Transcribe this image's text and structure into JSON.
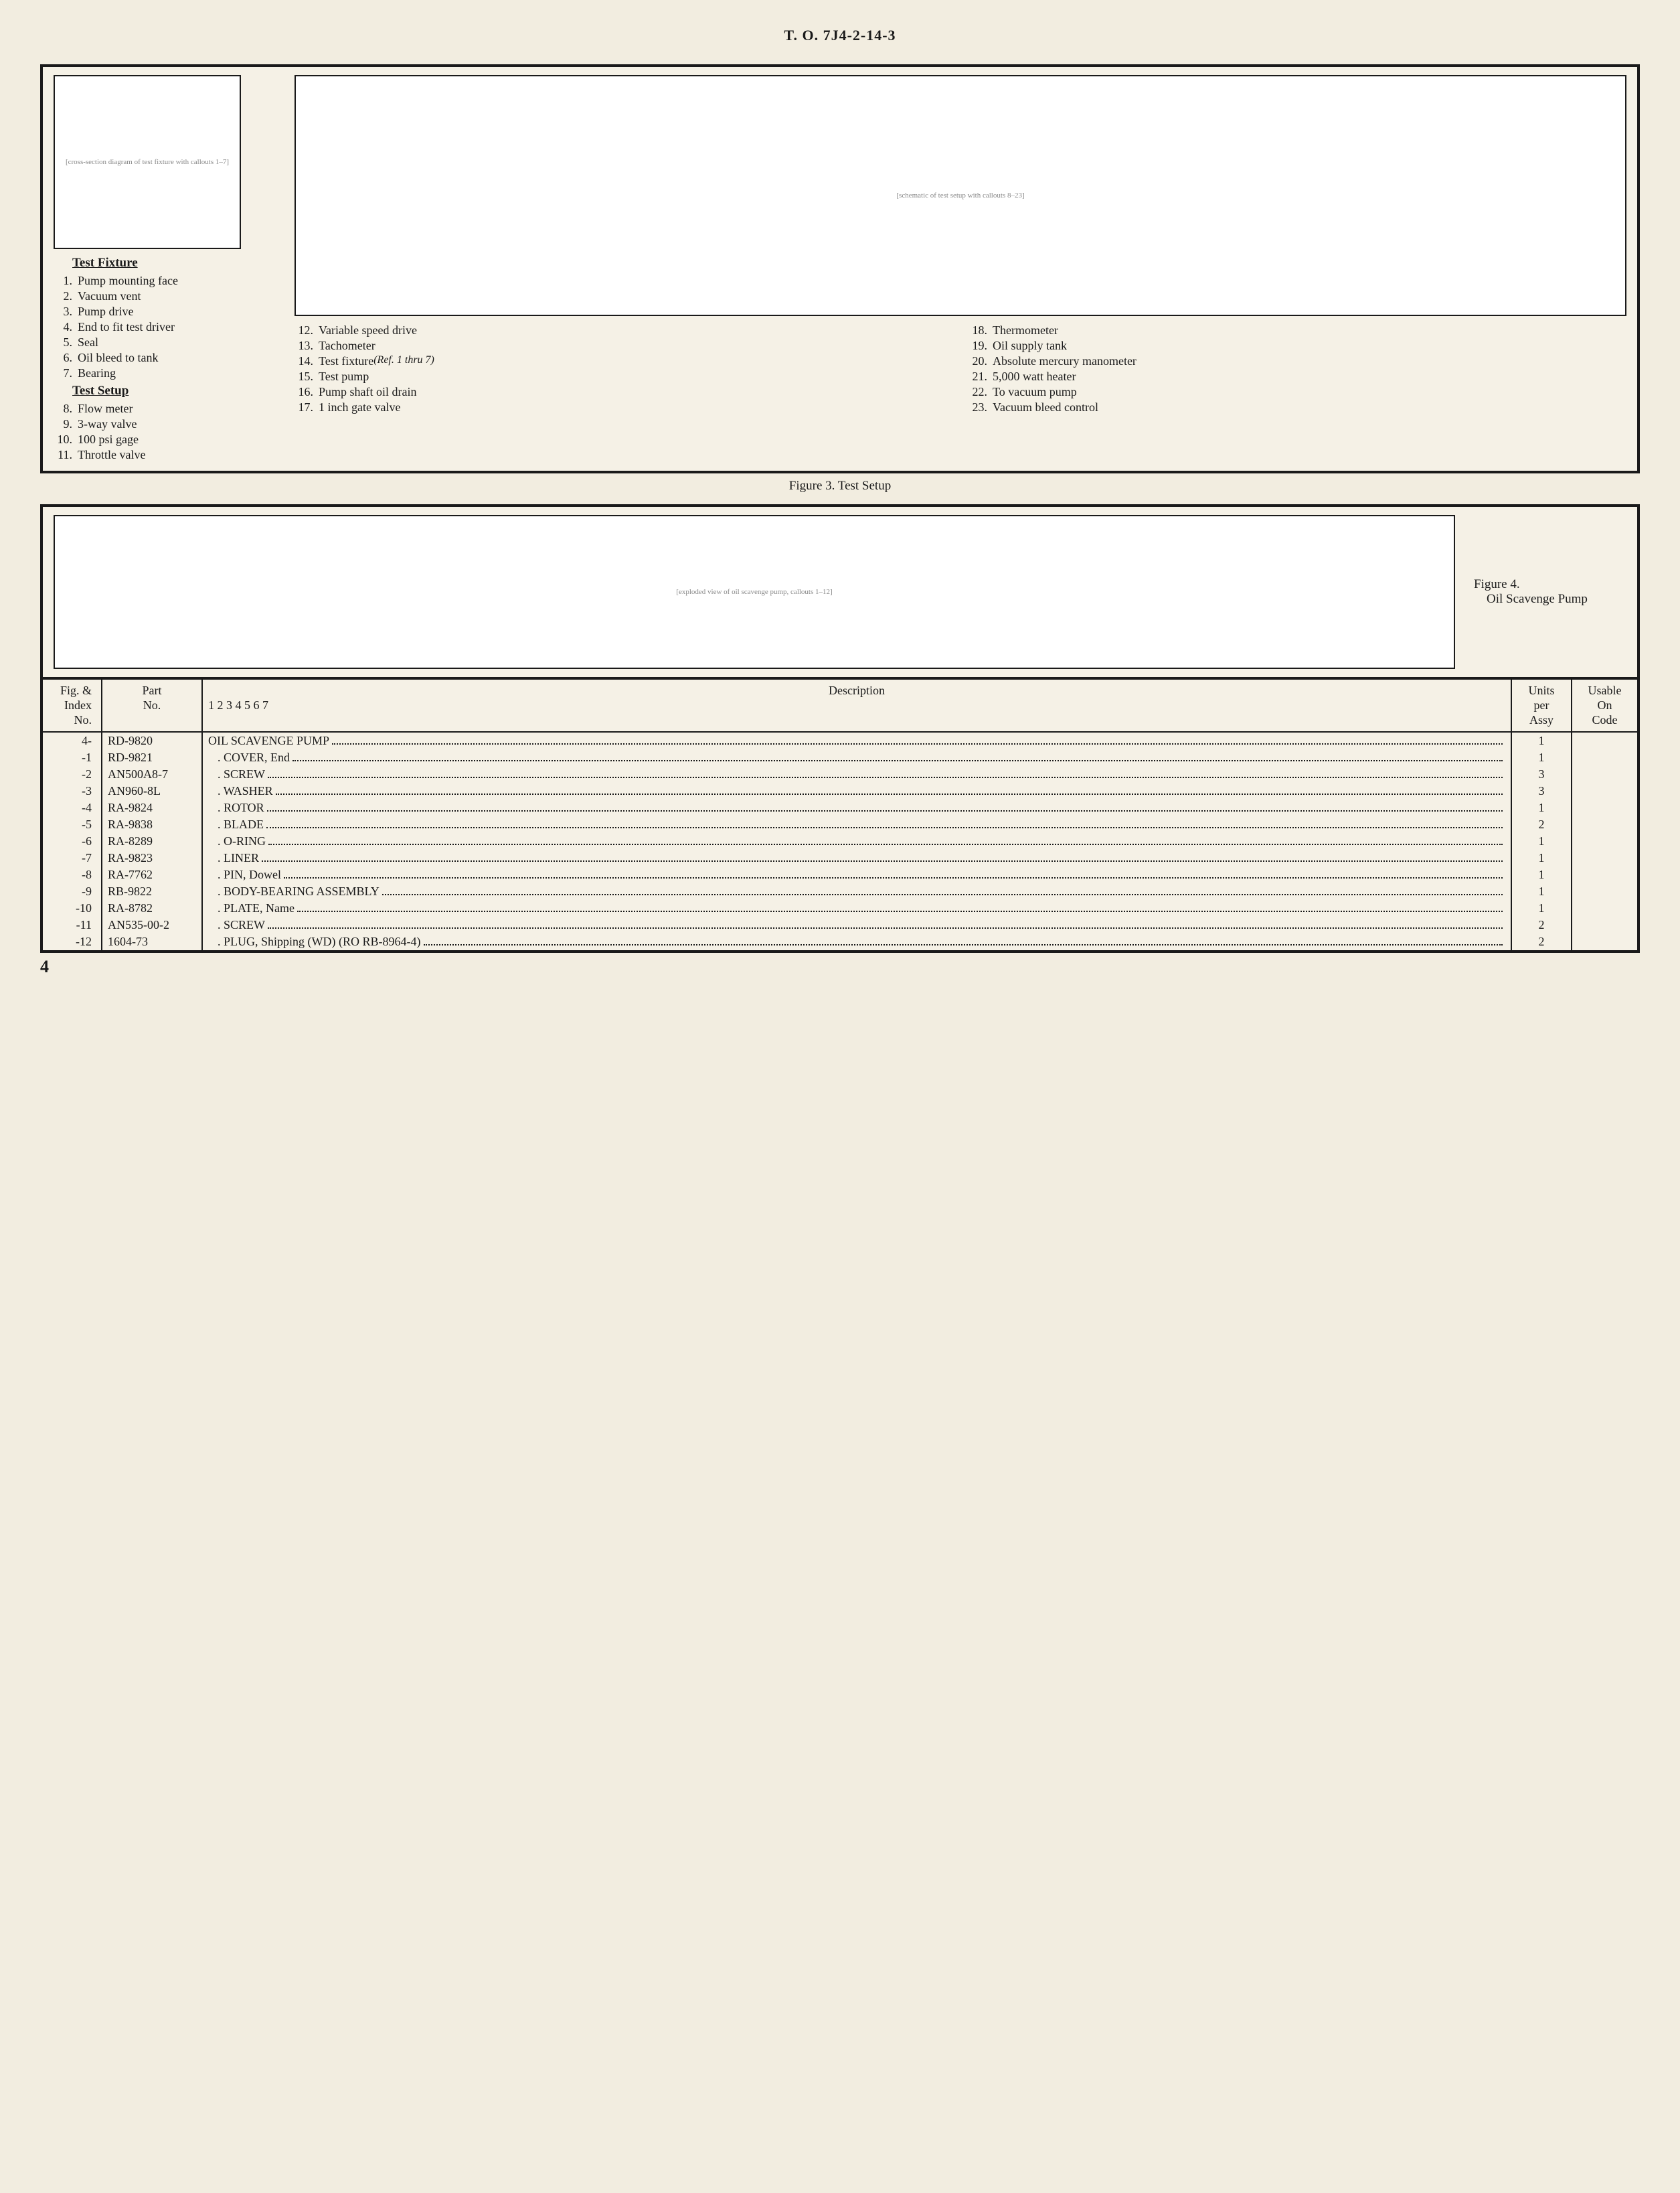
{
  "header": {
    "doc_id": "T. O. 7J4-2-14-3"
  },
  "figure3": {
    "caption": "Figure 3.  Test Setup",
    "fixture_diagram_note": "[cross-section diagram of test fixture with callouts 1–7]",
    "setup_diagram_note": "[schematic of test setup with callouts 8–23]",
    "fixture_heading": "Test Fixture",
    "setup_heading": "Test Setup",
    "fixture_items": [
      {
        "n": "1.",
        "t": "Pump mounting face"
      },
      {
        "n": "2.",
        "t": "Vacuum vent"
      },
      {
        "n": "3.",
        "t": "Pump drive"
      },
      {
        "n": "4.",
        "t": "End to fit test driver"
      },
      {
        "n": "5.",
        "t": "Seal"
      },
      {
        "n": "6.",
        "t": "Oil bleed to tank"
      },
      {
        "n": "7.",
        "t": "Bearing"
      }
    ],
    "setup_col1": [
      {
        "n": "8.",
        "t": "Flow meter"
      },
      {
        "n": "9.",
        "t": "3-way valve"
      },
      {
        "n": "10.",
        "t": "100 psi gage"
      },
      {
        "n": "11.",
        "t": "Throttle valve"
      }
    ],
    "setup_col2": [
      {
        "n": "12.",
        "t": "Variable speed drive"
      },
      {
        "n": "13.",
        "t": "Tachometer"
      },
      {
        "n": "14.",
        "t": "Test fixture",
        "ref": "(Ref.  1 thru 7)"
      },
      {
        "n": "15.",
        "t": "Test pump"
      },
      {
        "n": "16.",
        "t": "Pump shaft oil drain"
      },
      {
        "n": "17.",
        "t": "1 inch gate valve"
      }
    ],
    "setup_col3": [
      {
        "n": "18.",
        "t": "Thermometer"
      },
      {
        "n": "19.",
        "t": "Oil supply tank"
      },
      {
        "n": "20.",
        "t": "Absolute mercury manometer"
      },
      {
        "n": "21.",
        "t": "5,000 watt heater"
      },
      {
        "n": "22.",
        "t": "To vacuum pump"
      },
      {
        "n": "23.",
        "t": "Vacuum bleed control"
      }
    ]
  },
  "figure4": {
    "caption_line1": "Figure 4.",
    "caption_line2": "Oil Scavenge Pump",
    "diagram_note": "[exploded view of oil scavenge pump, callouts 1–12]"
  },
  "parts_table": {
    "head": {
      "index": "Fig. &\nIndex\nNo.",
      "part": "Part\nNo.",
      "desc": "Description",
      "desc_sub": "1 2 3 4 5 6 7",
      "units": "Units\nper\nAssy",
      "code": "Usable\nOn\nCode"
    },
    "rows": [
      {
        "idx": "4-",
        "part": "RD-9820",
        "indent": 0,
        "desc": "OIL SCAVENGE PUMP",
        "units": "1",
        "code": ""
      },
      {
        "idx": "-1",
        "part": "RD-9821",
        "indent": 1,
        "desc": "COVER, End",
        "units": "1",
        "code": ""
      },
      {
        "idx": "-2",
        "part": "AN500A8-7",
        "indent": 1,
        "desc": "SCREW",
        "units": "3",
        "code": ""
      },
      {
        "idx": "-3",
        "part": "AN960-8L",
        "indent": 1,
        "desc": "WASHER",
        "units": "3",
        "code": ""
      },
      {
        "idx": "-4",
        "part": "RA-9824",
        "indent": 1,
        "desc": "ROTOR",
        "units": "1",
        "code": ""
      },
      {
        "idx": "-5",
        "part": "RA-9838",
        "indent": 1,
        "desc": "BLADE",
        "units": "2",
        "code": ""
      },
      {
        "idx": "-6",
        "part": "RA-8289",
        "indent": 1,
        "desc": "O-RING",
        "units": "1",
        "code": ""
      },
      {
        "idx": "-7",
        "part": "RA-9823",
        "indent": 1,
        "desc": "LINER",
        "units": "1",
        "code": ""
      },
      {
        "idx": "-8",
        "part": "RA-7762",
        "indent": 1,
        "desc": "PIN, Dowel",
        "units": "1",
        "code": ""
      },
      {
        "idx": "-9",
        "part": "RB-9822",
        "indent": 1,
        "desc": "BODY-BEARING ASSEMBLY",
        "units": "1",
        "code": ""
      },
      {
        "idx": "-10",
        "part": "RA-8782",
        "indent": 1,
        "desc": "PLATE, Name",
        "units": "1",
        "code": ""
      },
      {
        "idx": "-11",
        "part": "AN535-00-2",
        "indent": 1,
        "desc": "SCREW",
        "units": "2",
        "code": ""
      },
      {
        "idx": "-12",
        "part": "1604-73",
        "indent": 1,
        "desc": "PLUG, Shipping (WD) (RO RB-8964-4)",
        "units": "2",
        "code": ""
      }
    ]
  },
  "page_number": "4"
}
